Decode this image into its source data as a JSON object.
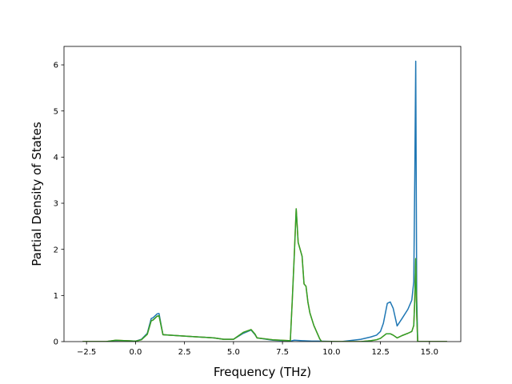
{
  "chart_data": {
    "type": "line",
    "title": "",
    "xlabel": "Frequency (THz)",
    "ylabel": "Partial Density of States",
    "xlim": [
      -3.65,
      16.6
    ],
    "ylim": [
      0,
      6.4
    ],
    "xticks": [
      -2.5,
      0.0,
      2.5,
      5.0,
      7.5,
      10.0,
      12.5,
      15.0
    ],
    "xtick_labels": [
      "−2.5",
      "0.0",
      "2.5",
      "5.0",
      "7.5",
      "10.0",
      "12.5",
      "15.0"
    ],
    "yticks": [
      0,
      1,
      2,
      3,
      4,
      5,
      6
    ],
    "ytick_labels": [
      "0",
      "1",
      "2",
      "3",
      "4",
      "5",
      "6"
    ],
    "grid": false,
    "legend": "none",
    "series": [
      {
        "color": "#1f77b4",
        "x": [
          -2.7,
          -1.5,
          -1.0,
          -0.5,
          0.0,
          0.3,
          0.6,
          0.8,
          0.9,
          1.1,
          1.2,
          1.4,
          2.5,
          4.0,
          4.5,
          5.0,
          5.5,
          5.9,
          6.1,
          6.2,
          7.0,
          7.9,
          8.1,
          8.5,
          9.0,
          9.3,
          10.5,
          11.5,
          12.0,
          12.3,
          12.5,
          12.65,
          12.85,
          13.0,
          13.15,
          13.35,
          13.6,
          13.9,
          14.1,
          14.2,
          14.25,
          14.3,
          14.35,
          14.4,
          15.9
        ],
        "y": [
          0,
          0,
          0.02,
          0.02,
          0.01,
          0.05,
          0.18,
          0.5,
          0.52,
          0.6,
          0.61,
          0.15,
          0.12,
          0.08,
          0.05,
          0.05,
          0.18,
          0.25,
          0.15,
          0.08,
          0.03,
          0.01,
          0.03,
          0.02,
          0.01,
          0.01,
          0,
          0.05,
          0.1,
          0.14,
          0.22,
          0.4,
          0.83,
          0.86,
          0.72,
          0.34,
          0.5,
          0.7,
          0.9,
          1.3,
          3.5,
          6.08,
          1.0,
          0,
          0
        ]
      },
      {
        "color": "#ff7f0e",
        "x": [
          -2.7,
          -1.5,
          -1.0,
          -0.5,
          0.0,
          0.3,
          0.6,
          0.8,
          0.9,
          1.1,
          1.2,
          1.4,
          2.5,
          4.0,
          4.5,
          5.0,
          5.5,
          5.9,
          6.1,
          6.2,
          7.0,
          7.9,
          8.0,
          8.1,
          8.2,
          8.3,
          8.5,
          8.6,
          8.7,
          8.8,
          8.9,
          9.1,
          9.4,
          9.5,
          10.5,
          11.5,
          12.0,
          12.3,
          12.5,
          12.8,
          13.0,
          13.15,
          13.35,
          13.6,
          13.9,
          14.1,
          14.2,
          14.25,
          14.3,
          14.35,
          14.4,
          15.9
        ],
        "y": [
          0,
          0,
          0.03,
          0.02,
          0.01,
          0.04,
          0.16,
          0.45,
          0.47,
          0.55,
          0.56,
          0.15,
          0.12,
          0.08,
          0.05,
          0.05,
          0.2,
          0.26,
          0.16,
          0.08,
          0.04,
          0.02,
          0.9,
          1.85,
          2.88,
          2.15,
          1.85,
          1.25,
          1.2,
          0.85,
          0.62,
          0.35,
          0.06,
          0,
          0,
          0,
          0.02,
          0.04,
          0.07,
          0.17,
          0.17,
          0.14,
          0.08,
          0.13,
          0.18,
          0.22,
          0.35,
          0.9,
          1.8,
          0.6,
          0,
          0
        ]
      },
      {
        "color": "#2ca02c",
        "x": [
          -2.7,
          -1.5,
          -1.0,
          -0.5,
          0.0,
          0.3,
          0.6,
          0.8,
          0.9,
          1.1,
          1.2,
          1.4,
          2.5,
          4.0,
          4.5,
          5.0,
          5.5,
          5.9,
          6.1,
          6.2,
          7.0,
          7.9,
          8.0,
          8.1,
          8.2,
          8.3,
          8.5,
          8.6,
          8.7,
          8.8,
          8.9,
          9.1,
          9.4,
          9.5,
          10.5,
          11.5,
          12.0,
          12.3,
          12.5,
          12.8,
          13.0,
          13.15,
          13.35,
          13.6,
          13.9,
          14.1,
          14.2,
          14.25,
          14.3,
          14.35,
          14.4,
          15.9
        ],
        "y": [
          0,
          0,
          0.03,
          0.02,
          0.01,
          0.04,
          0.16,
          0.45,
          0.47,
          0.55,
          0.56,
          0.15,
          0.12,
          0.08,
          0.05,
          0.05,
          0.2,
          0.26,
          0.16,
          0.08,
          0.04,
          0.02,
          0.9,
          1.85,
          2.88,
          2.15,
          1.85,
          1.25,
          1.2,
          0.85,
          0.62,
          0.35,
          0.06,
          0,
          0,
          0,
          0.02,
          0.04,
          0.07,
          0.17,
          0.17,
          0.14,
          0.08,
          0.13,
          0.18,
          0.22,
          0.35,
          0.9,
          1.8,
          0.6,
          0,
          0
        ]
      }
    ]
  }
}
